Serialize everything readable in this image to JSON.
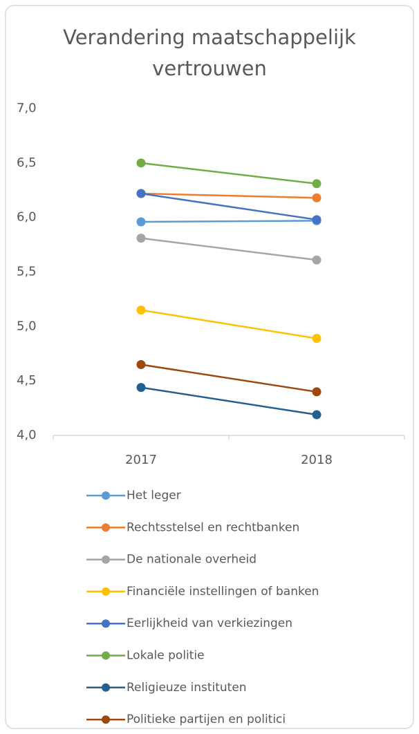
{
  "chart_data": {
    "type": "line",
    "title": "Verandering maatschappelijk vertrouwen",
    "categories": [
      "2017",
      "2018"
    ],
    "ylim": [
      4,
      7
    ],
    "yticks": [
      {
        "value": 4,
        "label": "4,0"
      },
      {
        "value": 4.5,
        "label": "4,5"
      },
      {
        "value": 5,
        "label": "5,0"
      },
      {
        "value": 5.5,
        "label": "5,5"
      },
      {
        "value": 6,
        "label": "6,0"
      },
      {
        "value": 6.5,
        "label": "6,5"
      },
      {
        "value": 7,
        "label": "7,0"
      }
    ],
    "series": [
      {
        "name": "Het leger",
        "color": "#5b9bd5",
        "values": [
          5.96,
          5.97
        ]
      },
      {
        "name": "Rechtsstelsel en rechtbanken",
        "color": "#ed7d31",
        "values": [
          6.22,
          6.18
        ]
      },
      {
        "name": "De nationale overheid",
        "color": "#a5a5a5",
        "values": [
          5.81,
          5.61
        ]
      },
      {
        "name": "Financiële instellingen of banken",
        "color": "#ffc000",
        "values": [
          5.15,
          4.89
        ]
      },
      {
        "name": "Eerlijkheid van verkiezingen",
        "color": "#4472c4",
        "values": [
          6.22,
          5.98
        ]
      },
      {
        "name": "Lokale politie",
        "color": "#70ad47",
        "values": [
          6.5,
          6.31
        ]
      },
      {
        "name": "Religieuze instituten",
        "color": "#255e91",
        "values": [
          4.44,
          4.19
        ]
      },
      {
        "name": "Politieke partijen en politici",
        "color": "#9e480e",
        "values": [
          4.65,
          4.4
        ]
      }
    ],
    "grid": false,
    "legend": "bottom"
  }
}
